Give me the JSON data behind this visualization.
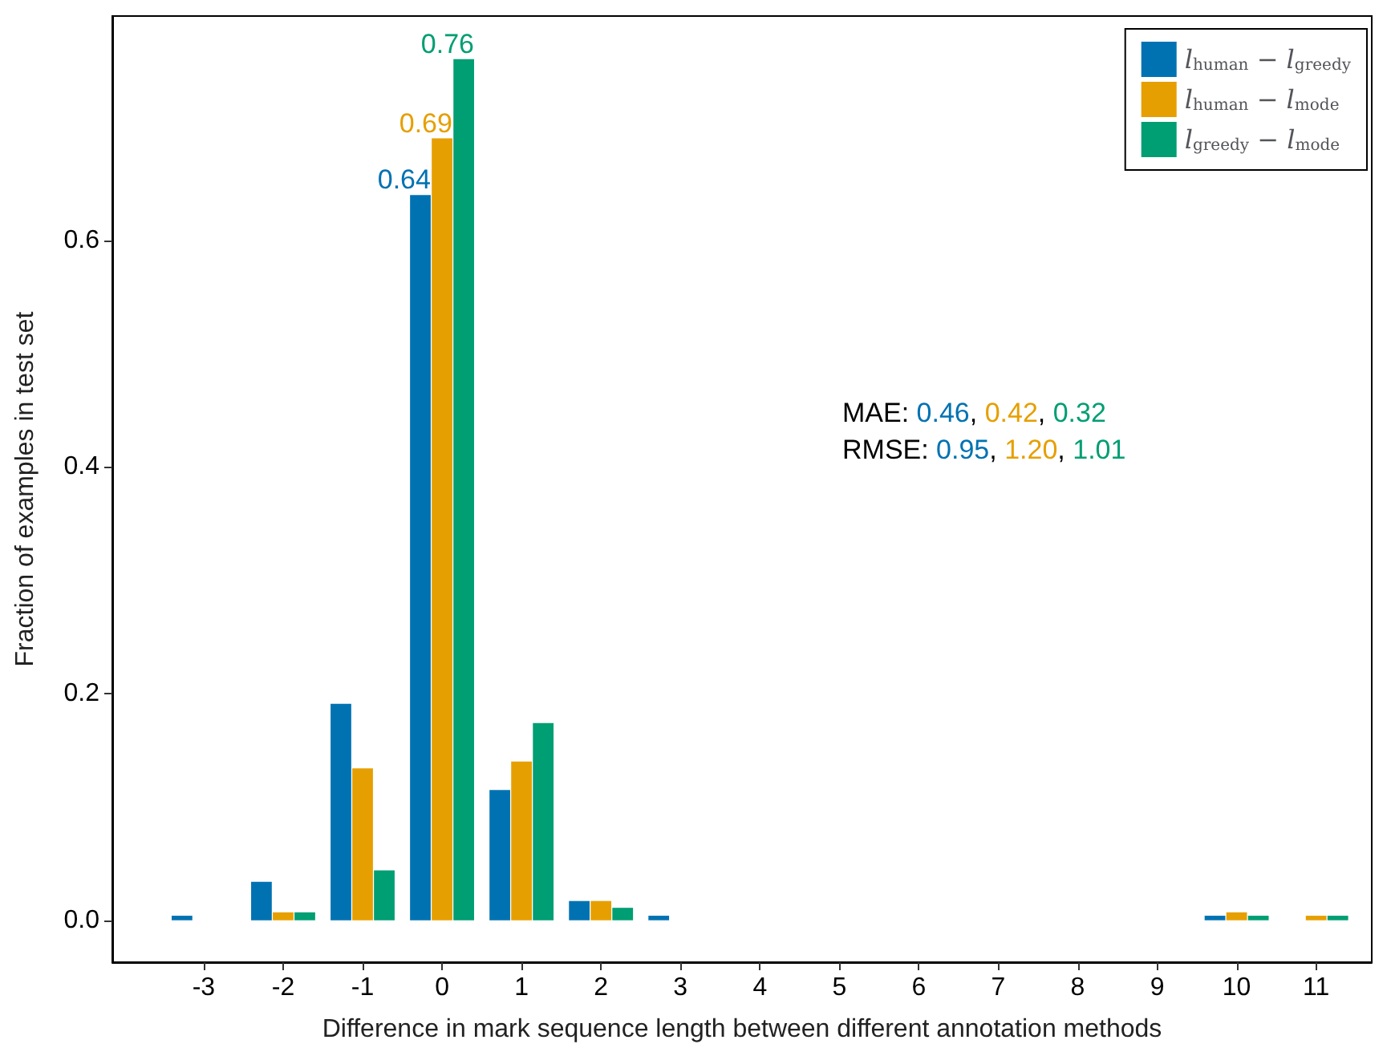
{
  "chart_data": {
    "type": "bar",
    "xlabel": "Difference in mark sequence length between different annotation methods",
    "ylabel": "Fraction of examples in test set",
    "x": [
      -3,
      -2,
      -1,
      0,
      1,
      2,
      3,
      10,
      11
    ],
    "series": [
      {
        "name": "l$_{human}$ − l$_{greedy}$",
        "color": "#0072b2",
        "values": [
          0.004,
          0.034,
          0.191,
          0.64,
          0.115,
          0.017,
          0.004,
          0.004,
          null
        ],
        "value_labels": [
          null,
          null,
          null,
          "0.64",
          null,
          null,
          null,
          null,
          null
        ]
      },
      {
        "name": "l$_{human}$ − l$_{mode}$",
        "color": "#e69f00",
        "values": [
          null,
          0.007,
          0.134,
          0.69,
          0.14,
          0.017,
          null,
          0.007,
          0.004
        ],
        "value_labels": [
          null,
          null,
          null,
          "0.69",
          null,
          null,
          null,
          null,
          null
        ]
      },
      {
        "name": "l$_{greedy}$ − l$_{mode}$",
        "color": "#009e73",
        "values": [
          null,
          0.007,
          0.044,
          0.76,
          0.174,
          0.011,
          null,
          0.004,
          0.004
        ],
        "value_labels": [
          null,
          null,
          null,
          "0.76",
          null,
          null,
          null,
          null,
          null
        ]
      }
    ],
    "xlim": [
      -4.15,
      11.7
    ],
    "xticks": [
      -3,
      -2,
      -1,
      0,
      1,
      2,
      3,
      4,
      5,
      6,
      7,
      8,
      9,
      10,
      11
    ],
    "ylim": [
      -0.037,
      0.798
    ],
    "yticks": [
      {
        "value": 0,
        "label": "0.0"
      },
      0.2,
      0.4,
      0.6
    ],
    "annotations": [
      "MAE: 0.46, 0.42, 0.32",
      "RMSE: 0.95, 1.20, 1.01"
    ],
    "legend": "top right",
    "grid": false
  }
}
